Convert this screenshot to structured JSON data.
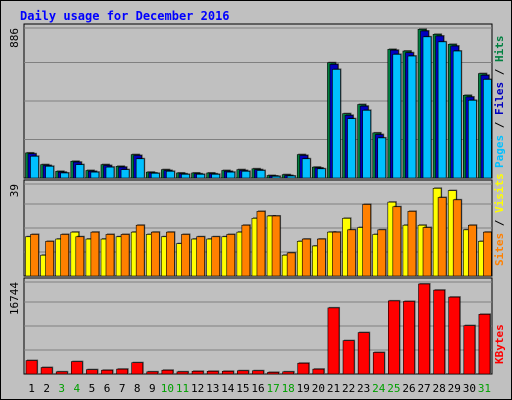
{
  "chart_data": [
    {
      "type": "bar",
      "title": "Daily usage for December 2016",
      "panel": "hits-files-pages",
      "y_axis_label": "886",
      "ylim": [
        0,
        886
      ],
      "categories": [
        "1",
        "2",
        "3",
        "4",
        "5",
        "6",
        "7",
        "8",
        "9",
        "10",
        "11",
        "12",
        "13",
        "14",
        "15",
        "16",
        "17",
        "18",
        "19",
        "20",
        "21",
        "22",
        "23",
        "24",
        "25",
        "26",
        "27",
        "28",
        "29",
        "30",
        "31"
      ],
      "series": [
        {
          "name": "Hits",
          "color": "#008040",
          "values": [
            150,
            80,
            40,
            100,
            45,
            80,
            70,
            140,
            35,
            50,
            30,
            30,
            30,
            45,
            50,
            55,
            15,
            20,
            140,
            65,
            690,
            385,
            440,
            270,
            770,
            760,
            890,
            860,
            800,
            495,
            625
          ]
        },
        {
          "name": "Files",
          "color": "#0000c0",
          "values": [
            145,
            75,
            35,
            95,
            40,
            75,
            65,
            135,
            30,
            45,
            25,
            25,
            25,
            40,
            45,
            50,
            12,
            15,
            135,
            60,
            680,
            375,
            430,
            260,
            765,
            750,
            880,
            850,
            790,
            485,
            615
          ]
        },
        {
          "name": "Pages",
          "color": "#00c0ff",
          "values": [
            130,
            70,
            30,
            80,
            35,
            65,
            50,
            115,
            28,
            40,
            22,
            22,
            22,
            35,
            40,
            45,
            10,
            12,
            115,
            55,
            650,
            355,
            405,
            240,
            740,
            730,
            845,
            815,
            760,
            465,
            590
          ]
        }
      ],
      "series_label_order": [
        "Pages",
        "Files",
        "Hits"
      ]
    },
    {
      "type": "bar",
      "panel": "visits-sites",
      "y_axis_label": "39",
      "ylim": [
        0,
        39
      ],
      "categories": [
        "1",
        "2",
        "3",
        "4",
        "5",
        "6",
        "7",
        "8",
        "9",
        "10",
        "11",
        "12",
        "13",
        "14",
        "15",
        "16",
        "17",
        "18",
        "19",
        "20",
        "21",
        "22",
        "23",
        "24",
        "25",
        "26",
        "27",
        "28",
        "29",
        "30",
        "31"
      ],
      "series": [
        {
          "name": "Visits",
          "color": "#ffff00",
          "values": [
            17,
            9,
            16,
            19,
            16,
            16,
            17,
            19,
            18,
            17,
            14,
            16,
            16,
            17,
            19,
            25,
            26,
            9,
            15,
            13,
            19,
            25,
            21,
            18,
            32,
            22,
            22,
            38,
            37,
            20,
            15
          ]
        },
        {
          "name": "Sites",
          "color": "#ff8000",
          "values": [
            18,
            15,
            18,
            17,
            19,
            18,
            18,
            22,
            19,
            19,
            18,
            17,
            17,
            18,
            22,
            28,
            26,
            10,
            16,
            16,
            19,
            20,
            31,
            20,
            30,
            28,
            21,
            34,
            33,
            22,
            19
          ]
        }
      ],
      "series_label_order": [
        "Sites",
        "Visits"
      ]
    },
    {
      "type": "bar",
      "panel": "kbytes",
      "y_axis_label": "16744",
      "ylim": [
        0,
        16744
      ],
      "categories": [
        "1",
        "2",
        "3",
        "4",
        "5",
        "6",
        "7",
        "8",
        "9",
        "10",
        "11",
        "12",
        "13",
        "14",
        "15",
        "16",
        "17",
        "18",
        "19",
        "20",
        "21",
        "22",
        "23",
        "24",
        "25",
        "26",
        "27",
        "28",
        "29",
        "30",
        "31"
      ],
      "series": [
        {
          "name": "KBytes",
          "color": "#ff0000",
          "values": [
            2500,
            1200,
            400,
            2300,
            800,
            700,
            900,
            2100,
            400,
            700,
            400,
            500,
            500,
            500,
            600,
            600,
            300,
            400,
            2000,
            900,
            12300,
            6200,
            7700,
            4000,
            13600,
            13500,
            16744,
            15600,
            14300,
            9000,
            11100
          ]
        }
      ]
    }
  ],
  "colors": {
    "background": "#c0c0c0",
    "plot_bg": "#c0c0c0",
    "border": "#000000",
    "gridline": "#808080",
    "title": "#0000ff",
    "weekend_label": "#00a000",
    "weekday_label": "#000000"
  },
  "weekend_days": [
    "3",
    "4",
    "10",
    "11",
    "17",
    "18",
    "24",
    "25",
    "31"
  ]
}
